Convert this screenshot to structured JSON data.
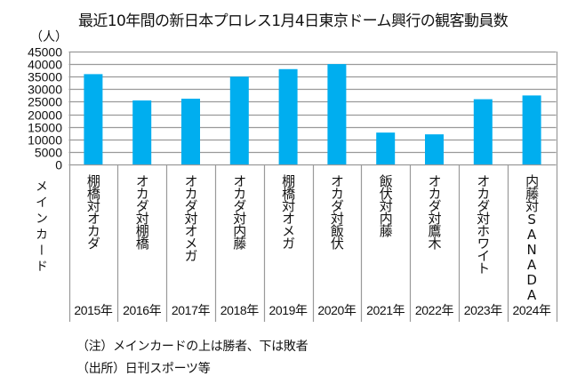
{
  "chart_data": {
    "type": "bar",
    "title": "最近10年間の新日本プロレス1月4日東京ドーム興行の観客動員数",
    "unit_label": "（人）",
    "xlabel": "メインカード",
    "ylabel": "（人）",
    "ylim": [
      0,
      45000
    ],
    "yticks": [
      0,
      5000,
      10000,
      15000,
      20000,
      25000,
      30000,
      35000,
      40000,
      45000
    ],
    "grid": true,
    "bar_color": "#00AEEF",
    "categories": [
      "2015年",
      "2016年",
      "2017年",
      "2018年",
      "2019年",
      "2020年",
      "2021年",
      "2022年",
      "2023年",
      "2024年"
    ],
    "main_cards": [
      "棚橋対オカダ",
      "オカダ対棚橋",
      "オカダ対オメガ",
      "オカダ対内藤",
      "棚橋対オメガ",
      "オカダ対飯伏",
      "飯伏対内藤",
      "オカダ対鷹木",
      "オカダ対ホワイト",
      "内藤対SANADA"
    ],
    "values": [
      36000,
      25500,
      26200,
      35000,
      38000,
      40000,
      12700,
      12000,
      26000,
      27500
    ]
  },
  "notes": {
    "note": "（注）メインカードの上は勝者、下は敗者",
    "source": "（出所）日刊スポーツ等"
  }
}
